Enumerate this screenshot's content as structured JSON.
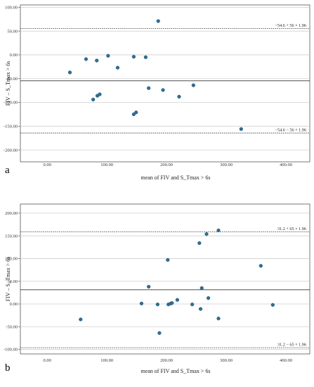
{
  "chart_data": [
    {
      "type": "scatter",
      "panel_label": "a",
      "xlabel": "mean of FIV and S_Tmax > 6s",
      "ylabel": "FIV – S_Tmax > 6s",
      "xlim": [
        -45,
        440
      ],
      "ylim": [
        -225,
        105
      ],
      "xticks": [
        "0.00",
        "100.00",
        "200.00",
        "300.00",
        "400.00"
      ],
      "xtick_values": [
        0,
        100,
        200,
        300,
        400
      ],
      "yticks": [
        "100.00",
        "50.00",
        "0.00",
        "-50.00",
        "-100.00",
        "-150.00",
        "-200.00"
      ],
      "ytick_values": [
        100,
        50,
        0,
        -50,
        -100,
        -150,
        -200
      ],
      "grid": "horizontal",
      "mean_line": -54.6,
      "upper_loa": {
        "value": 55.2,
        "label": "−54.6 + 56 × 1.96"
      },
      "lower_loa": {
        "value": -164.4,
        "label": "−54.6 − 56 × 1.96"
      },
      "points": [
        {
          "x": 38,
          "y": -37
        },
        {
          "x": 65,
          "y": -9
        },
        {
          "x": 77,
          "y": -94
        },
        {
          "x": 83,
          "y": -12
        },
        {
          "x": 84,
          "y": -86
        },
        {
          "x": 88,
          "y": -83
        },
        {
          "x": 102,
          "y": -2
        },
        {
          "x": 118,
          "y": -27
        },
        {
          "x": 145,
          "y": -4
        },
        {
          "x": 145,
          "y": -125
        },
        {
          "x": 149,
          "y": -121
        },
        {
          "x": 165,
          "y": -5
        },
        {
          "x": 170,
          "y": -70
        },
        {
          "x": 186,
          "y": 71
        },
        {
          "x": 194,
          "y": -74
        },
        {
          "x": 221,
          "y": -88
        },
        {
          "x": 245,
          "y": -64
        },
        {
          "x": 325,
          "y": -156
        }
      ]
    },
    {
      "type": "scatter",
      "panel_label": "b",
      "xlabel": "mean of FIV and S_Tmax > 6s",
      "ylabel": "FIV – S_Tmax > 6s",
      "xlim": [
        -45,
        440
      ],
      "ylim": [
        -110,
        220
      ],
      "xticks": [
        "0.00",
        "100.00",
        "200.00",
        "300.00",
        "400.00"
      ],
      "xtick_values": [
        0,
        100,
        200,
        300,
        400
      ],
      "yticks": [
        "200.00",
        "150.00",
        "100.00",
        "50.00",
        "0.00",
        "-50.00",
        "-100.00"
      ],
      "ytick_values": [
        200,
        150,
        100,
        50,
        0,
        -50,
        -100
      ],
      "grid": "horizontal",
      "mean_line": 31.2,
      "upper_loa": {
        "value": 158.6,
        "label": "31.2 + 65 × 1.96"
      },
      "lower_loa": {
        "value": -96.2,
        "label": "31.2 − 65 × 1.96"
      },
      "points": [
        {
          "x": 56,
          "y": -34
        },
        {
          "x": 158,
          "y": 1
        },
        {
          "x": 170,
          "y": 38
        },
        {
          "x": 185,
          "y": -1
        },
        {
          "x": 188,
          "y": -64
        },
        {
          "x": 202,
          "y": 97
        },
        {
          "x": 203,
          "y": -1
        },
        {
          "x": 207,
          "y": 1
        },
        {
          "x": 209,
          "y": 2
        },
        {
          "x": 218,
          "y": 9
        },
        {
          "x": 243,
          "y": -1
        },
        {
          "x": 255,
          "y": 134
        },
        {
          "x": 257,
          "y": -11
        },
        {
          "x": 259,
          "y": 35
        },
        {
          "x": 267,
          "y": 154
        },
        {
          "x": 270,
          "y": 13
        },
        {
          "x": 287,
          "y": 162
        },
        {
          "x": 287,
          "y": -32
        },
        {
          "x": 358,
          "y": 84
        },
        {
          "x": 378,
          "y": -2
        }
      ]
    }
  ]
}
